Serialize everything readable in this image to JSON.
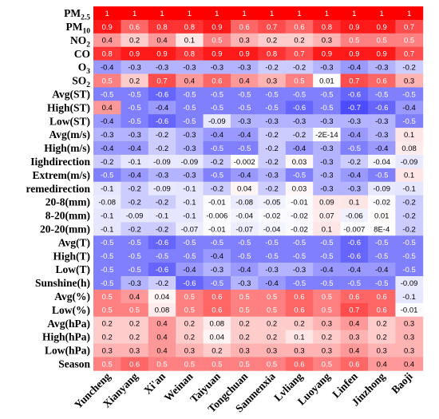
{
  "chart_data": {
    "type": "heatmap",
    "columns": [
      "Yuncheng",
      "Xianyang",
      "Xi'an",
      "Weinan",
      "Taiyuan",
      "Tongchuan",
      "Sanmenxia",
      "Lvliang",
      "Luoyang",
      "Linfen",
      "Jinzhong",
      "Baoji"
    ],
    "rows": [
      {
        "label": "PM",
        "sub": "2.5",
        "values": [
          "1",
          "1",
          "1",
          "1",
          "1",
          "1",
          "1",
          "1",
          "1",
          "1",
          "1",
          "1"
        ]
      },
      {
        "label": "PM",
        "sub": "10",
        "values": [
          "0.9",
          "0.6",
          "0.8",
          "0.8",
          "0.9",
          "0.6",
          "0.7",
          "0.6",
          "0.8",
          "0.9",
          "0.9",
          "0.7"
        ]
      },
      {
        "label": "NO",
        "sub": "2",
        "values": [
          "0.4",
          "0.2",
          "0.4",
          "0.1",
          "0.5",
          "0.3",
          "0.2",
          "0.2",
          "0.3",
          "0.5",
          "0.5",
          "0.5"
        ]
      },
      {
        "label": "CO",
        "sub": "",
        "values": [
          "0.8",
          "0.9",
          "0.9",
          "0.8",
          "0.9",
          "0.9",
          "0.8",
          "0.7",
          "0.9",
          "0.9",
          "0.9",
          "0.7"
        ]
      },
      {
        "label": "O",
        "sub": "3",
        "values": [
          "-0.4",
          "-0.3",
          "-0.3",
          "-0.3",
          "-0.3",
          "-0.3",
          "-0.2",
          "-0.2",
          "-0.3",
          "-0.4",
          "-0.3",
          "-0.2"
        ]
      },
      {
        "label": "SO",
        "sub": "2",
        "values": [
          "0.5",
          "0.2",
          "0.7",
          "0.4",
          "0.6",
          "0.4",
          "0.3",
          "0.5",
          "0.01",
          "0.7",
          "0.6",
          "0.3"
        ]
      },
      {
        "label": "Avg(ST)",
        "sub": "",
        "values": [
          "-0.5",
          "-0.5",
          "-0.6",
          "-0.5",
          "-0.5",
          "-0.5",
          "-0.5",
          "-0.5",
          "-0.5",
          "-0.6",
          "-0.5",
          "-0.5"
        ]
      },
      {
        "label": "High(ST)",
        "sub": "",
        "values": [
          "0.4",
          "-0.5",
          "-0.4",
          "-0.5",
          "-0.5",
          "-0.5",
          "-0.5",
          "-0.6",
          "-0.5",
          "-0.7",
          "-0.6",
          "-0.4"
        ]
      },
      {
        "label": "Low(ST)",
        "sub": "",
        "values": [
          "-0.4",
          "-0.5",
          "-0.6",
          "-0.5",
          "-0.09",
          "-0.3",
          "-0.3",
          "-0.3",
          "-0.3",
          "-0.3",
          "-0.3",
          "-0.5"
        ]
      },
      {
        "label": "Avg(m/s)",
        "sub": "",
        "values": [
          "-0.3",
          "-0.3",
          "-0.2",
          "-0.3",
          "-0.4",
          "-0.4",
          "-0.2",
          "-0.2",
          "-2E-14",
          "-0.4",
          "-0.3",
          "0.1"
        ]
      },
      {
        "label": "High(m/s)",
        "sub": "",
        "values": [
          "-0.4",
          "-0.4",
          "-0.2",
          "-0.3",
          "-0.5",
          "-0.5",
          "-0.2",
          "-0.4",
          "-0.3",
          "-0.5",
          "-0.4",
          "0.08"
        ]
      },
      {
        "label": "Iighdirection",
        "sub": "",
        "values": [
          "-0.2",
          "-0.1",
          "-0.09",
          "-0.09",
          "-0.2",
          "-0.002",
          "-0.2",
          "0.03",
          "-0.3",
          "-0.2",
          "-0.04",
          "-0.09"
        ]
      },
      {
        "label": "Extrem(m/s)",
        "sub": "",
        "values": [
          "-0.5",
          "-0.4",
          "-0.3",
          "-0.3",
          "-0.5",
          "-0.4",
          "-0.3",
          "-0.5",
          "-0.3",
          "-0.4",
          "-0.5",
          "0.1"
        ]
      },
      {
        "label": "remedirection",
        "sub": "",
        "values": [
          "-0.1",
          "-0.2",
          "-0.09",
          "-0.1",
          "-0.2",
          "0.04",
          "-0.2",
          "0.03",
          "-0.3",
          "-0.3",
          "-0.09",
          "-0.1"
        ]
      },
      {
        "label": "20-8(mm)",
        "sub": "",
        "values": [
          "-0.08",
          "-0.2",
          "-0.2",
          "-0.1",
          "-0.01",
          "-0.08",
          "-0.05",
          "-0.01",
          "0.09",
          "0.1",
          "-0.02",
          "-0.2"
        ]
      },
      {
        "label": "8-20(mm)",
        "sub": "",
        "values": [
          "-0.1",
          "-0.09",
          "-0.1",
          "-0.1",
          "-0.006",
          "-0.04",
          "-0.02",
          "-0.02",
          "0.07",
          "-0.06",
          "0.01",
          "-0.2"
        ]
      },
      {
        "label": "20-20(mm)",
        "sub": "",
        "values": [
          "-0.1",
          "-0.2",
          "-0.2",
          "-0.07",
          "-0.01",
          "-0.07",
          "-0.04",
          "-0.02",
          "0.1",
          "-0.007",
          "8E-4",
          "-0.2"
        ]
      },
      {
        "label": "Avg(T)",
        "sub": "",
        "values": [
          "-0.5",
          "-0.5",
          "-0.6",
          "-0.5",
          "-0.5",
          "-0.5",
          "-0.5",
          "-0.5",
          "-0.5",
          "-0.6",
          "-0.5",
          "-0.5"
        ]
      },
      {
        "label": "High(T)",
        "sub": "",
        "values": [
          "-0.5",
          "-0.5",
          "-0.5",
          "-0.5",
          "-0.4",
          "-0.5",
          "-0.5",
          "-0.5",
          "-0.5",
          "-0.6",
          "-0.5",
          "-0.5"
        ]
      },
      {
        "label": "Low(T)",
        "sub": "",
        "values": [
          "-0.5",
          "-0.5",
          "-0.6",
          "-0.4",
          "-0.3",
          "-0.4",
          "-0.3",
          "-0.3",
          "-0.4",
          "-0.4",
          "-0.4",
          "-0.5"
        ]
      },
      {
        "label": "Sunshine(h)",
        "sub": "",
        "values": [
          "-0.5",
          "-0.3",
          "-0.2",
          "-0.6",
          "-0.5",
          "-0.3",
          "-0.4",
          "-0.5",
          "-0.5",
          "-0.5",
          "-0.5",
          "-0.09"
        ]
      },
      {
        "label": "Avg(%)",
        "sub": "",
        "values": [
          "0.5",
          "0.4",
          "0.04",
          "0.5",
          "0.6",
          "0.5",
          "0.5",
          "0.6",
          "0.5",
          "0.6",
          "0.6",
          "-0.1"
        ]
      },
      {
        "label": "Low(%)",
        "sub": "",
        "values": [
          "0.5",
          "0.5",
          "0.08",
          "0.5",
          "0.6",
          "0.5",
          "0.5",
          "0.6",
          "0.5",
          "0.7",
          "0.6",
          "-0.01"
        ]
      },
      {
        "label": "Avg(hPa)",
        "sub": "",
        "values": [
          "0.2",
          "0.2",
          "0.4",
          "0.2",
          "0.08",
          "0.2",
          "0.2",
          "0.2",
          "0.3",
          "0.4",
          "0.2",
          "0.3"
        ]
      },
      {
        "label": "High(hPa)",
        "sub": "",
        "values": [
          "0.2",
          "0.2",
          "0.4",
          "0.2",
          "0.04",
          "0.2",
          "0.2",
          "0.1",
          "0.2",
          "0.3",
          "0.2",
          "0.3"
        ]
      },
      {
        "label": "Low(hPa)",
        "sub": "",
        "values": [
          "0.3",
          "0.3",
          "0.4",
          "0.3",
          "0.2",
          "0.3",
          "0.3",
          "0.3",
          "0.3",
          "0.4",
          "0.3",
          "0.3"
        ]
      },
      {
        "label": "Season",
        "sub": "",
        "values": [
          "0.5",
          "0.6",
          "0.5",
          "0.5",
          "0.5",
          "0.5",
          "0.5",
          "0.6",
          "0.5",
          "0.6",
          "0.4",
          "0.4"
        ]
      }
    ],
    "value_range": [
      -1,
      1
    ],
    "colors": {
      "negative": "#0000ff",
      "neutral": "#ffffff",
      "positive": "#ff0000"
    }
  }
}
